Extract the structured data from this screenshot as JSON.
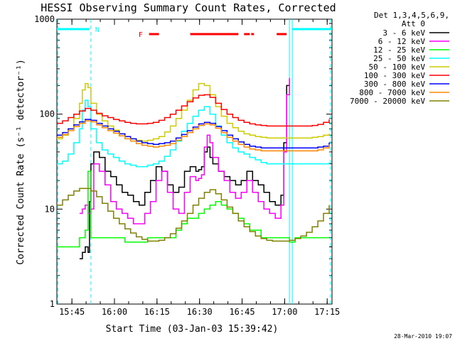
{
  "chart_data": {
    "type": "line",
    "title": "HESSI Observing Summary Count Rates, Corrected",
    "xlabel": "Start Time (03-Jan-03 15:39:42)",
    "ylabel": "Corrected Count Rate (s⁻¹ detector⁻¹)",
    "ylog": true,
    "ylim": [
      1,
      1000
    ],
    "xlim_min": [
      0,
      97
    ],
    "x_ticks": [
      {
        "min": 5.3,
        "label": "15:45"
      },
      {
        "min": 20.3,
        "label": "16:00"
      },
      {
        "min": 35.3,
        "label": "16:15"
      },
      {
        "min": 50.3,
        "label": "16:30"
      },
      {
        "min": 65.3,
        "label": "16:45"
      },
      {
        "min": 80.3,
        "label": "17:00"
      },
      {
        "min": 95.3,
        "label": "17:15"
      }
    ],
    "y_ticks": [
      {
        "v": 1,
        "label": "1"
      },
      {
        "v": 10,
        "label": "10"
      },
      {
        "v": 100,
        "label": "100"
      },
      {
        "v": 1000,
        "label": "1000"
      }
    ],
    "legend_header": [
      "Det 1,3,4,5,6,9,",
      "Att 0"
    ],
    "series": [
      {
        "name": "3 - 6 keV",
        "color": "#000000",
        "x": [
          8,
          9,
          10,
          11,
          11.5,
          12,
          13,
          15,
          17,
          19,
          21,
          23,
          25,
          27,
          29,
          31,
          33,
          35,
          37,
          39,
          41,
          43,
          45,
          47,
          49,
          50,
          51,
          52,
          53,
          54,
          55,
          57,
          59,
          61,
          63,
          65,
          67,
          69,
          71,
          73,
          75,
          77,
          79,
          80,
          81,
          82
        ],
        "y": [
          3,
          3.5,
          4,
          3.5,
          12,
          30,
          40,
          35,
          25,
          22,
          18,
          15,
          14,
          12,
          11,
          15,
          20,
          28,
          25,
          18,
          15,
          17,
          25,
          28,
          25,
          26,
          28,
          40,
          45,
          35,
          30,
          25,
          22,
          20,
          18,
          20,
          25,
          20,
          18,
          15,
          12,
          11,
          14,
          50,
          200,
          230
        ]
      },
      {
        "name": "6 - 12 keV",
        "color": "#ff00ff",
        "x": [
          8,
          9,
          10,
          11,
          12,
          13,
          15,
          17,
          19,
          21,
          23,
          25,
          27,
          29,
          31,
          33,
          35,
          37,
          39,
          41,
          43,
          45,
          47,
          49,
          50,
          51,
          52,
          53,
          54,
          55,
          57,
          59,
          61,
          63,
          65,
          67,
          69,
          71,
          73,
          75,
          77,
          79,
          80,
          81,
          82
        ],
        "y": [
          9,
          10,
          11,
          9,
          10,
          30,
          25,
          18,
          12,
          10,
          9,
          8,
          7,
          7,
          9,
          12,
          20,
          25,
          15,
          10,
          9,
          15,
          22,
          20,
          21,
          23,
          45,
          60,
          50,
          35,
          25,
          20,
          15,
          13,
          15,
          20,
          15,
          12,
          10,
          9,
          8,
          11,
          40,
          160,
          240
        ]
      },
      {
        "name": "12 - 25 keV",
        "color": "#00ff00",
        "x": [
          0,
          2,
          4,
          6,
          8,
          10,
          11,
          12,
          14,
          16,
          18,
          20,
          22,
          24,
          26,
          28,
          30,
          32,
          34,
          36,
          38,
          40,
          42,
          44,
          46,
          48,
          50,
          52,
          54,
          56,
          58,
          60,
          62,
          64,
          66,
          68,
          70,
          72,
          74,
          76,
          78,
          80,
          82,
          84,
          86,
          88,
          90,
          92,
          94,
          96
        ],
        "y": [
          4,
          4,
          4,
          4,
          5,
          6,
          25,
          5,
          5,
          5,
          5,
          5,
          5,
          4.5,
          4.5,
          4.5,
          4.5,
          5,
          5,
          5,
          5,
          5,
          6,
          7,
          8,
          8,
          9,
          10,
          11,
          12,
          11,
          10,
          9,
          8,
          7,
          6,
          6,
          5,
          5,
          5,
          5,
          5,
          4.5,
          5,
          5,
          5,
          5,
          5,
          5,
          5
        ]
      },
      {
        "name": "25 - 50 keV",
        "color": "#00ffff",
        "x": [
          0,
          2,
          4,
          6,
          8,
          9,
          10,
          11,
          12,
          14,
          16,
          18,
          20,
          22,
          24,
          26,
          28,
          30,
          32,
          34,
          36,
          38,
          40,
          42,
          44,
          46,
          48,
          50,
          52,
          54,
          56,
          58,
          60,
          62,
          64,
          66,
          68,
          70,
          72,
          74,
          76,
          78,
          80,
          82,
          84,
          86,
          88,
          90,
          92,
          94,
          96
        ],
        "y": [
          30,
          32,
          38,
          50,
          70,
          110,
          140,
          120,
          70,
          50,
          42,
          38,
          35,
          32,
          30,
          29,
          28,
          28,
          29,
          30,
          32,
          36,
          42,
          52,
          66,
          80,
          95,
          110,
          120,
          100,
          75,
          60,
          50,
          44,
          40,
          38,
          35,
          33,
          31,
          30,
          30,
          30,
          30,
          30,
          30,
          30,
          30,
          30,
          30,
          30,
          31
        ]
      },
      {
        "name": "50 - 100 keV",
        "color": "#cccc00",
        "x": [
          0,
          2,
          4,
          6,
          8,
          9,
          10,
          11,
          12,
          14,
          16,
          18,
          20,
          22,
          24,
          26,
          28,
          30,
          32,
          34,
          36,
          38,
          40,
          42,
          44,
          46,
          48,
          50,
          52,
          54,
          56,
          58,
          60,
          62,
          64,
          66,
          68,
          70,
          72,
          74,
          76,
          78,
          80,
          82,
          84,
          86,
          88,
          90,
          92,
          94,
          96
        ],
        "y": [
          55,
          60,
          70,
          90,
          130,
          180,
          210,
          190,
          130,
          100,
          85,
          75,
          68,
          62,
          58,
          55,
          53,
          52,
          53,
          55,
          58,
          65,
          75,
          90,
          110,
          140,
          180,
          210,
          200,
          160,
          120,
          95,
          80,
          72,
          66,
          62,
          60,
          58,
          57,
          56,
          56,
          56,
          56,
          56,
          56,
          56,
          56,
          57,
          58,
          60,
          62
        ]
      },
      {
        "name": "100 - 300 keV",
        "color": "#ff0000",
        "x": [
          0,
          2,
          4,
          6,
          8,
          10,
          12,
          14,
          16,
          18,
          20,
          22,
          24,
          26,
          28,
          30,
          32,
          34,
          36,
          38,
          40,
          42,
          44,
          46,
          48,
          50,
          52,
          54,
          56,
          58,
          60,
          62,
          64,
          66,
          68,
          70,
          72,
          74,
          76,
          78,
          80,
          82,
          84,
          86,
          88,
          90,
          92,
          94,
          96
        ],
        "y": [
          80,
          85,
          92,
          100,
          108,
          115,
          110,
          102,
          96,
          92,
          88,
          85,
          82,
          80,
          79,
          79,
          80,
          82,
          86,
          92,
          100,
          110,
          122,
          135,
          148,
          158,
          160,
          150,
          130,
          112,
          100,
          92,
          86,
          82,
          79,
          77,
          76,
          75,
          75,
          75,
          75,
          75,
          75,
          75,
          75,
          76,
          78,
          82,
          88
        ]
      },
      {
        "name": "300 - 800 keV",
        "color": "#0000ff",
        "x": [
          0,
          2,
          4,
          6,
          8,
          10,
          12,
          14,
          16,
          18,
          20,
          22,
          24,
          26,
          28,
          30,
          32,
          34,
          36,
          38,
          40,
          42,
          44,
          46,
          48,
          50,
          52,
          54,
          56,
          58,
          60,
          62,
          64,
          66,
          68,
          70,
          72,
          74,
          76,
          78,
          80,
          82,
          84,
          86,
          88,
          90,
          92,
          94,
          96
        ],
        "y": [
          60,
          64,
          70,
          77,
          83,
          88,
          86,
          80,
          75,
          70,
          66,
          62,
          58,
          55,
          52,
          50,
          49,
          48,
          49,
          50,
          52,
          56,
          61,
          67,
          73,
          79,
          82,
          80,
          74,
          67,
          60,
          55,
          51,
          48,
          46,
          45,
          44,
          44,
          44,
          44,
          44,
          44,
          44,
          44,
          44,
          44,
          45,
          46,
          50
        ]
      },
      {
        "name": "800 - 7000 keV",
        "color": "#ff8800",
        "x": [
          0,
          2,
          4,
          6,
          8,
          10,
          12,
          14,
          16,
          18,
          20,
          22,
          24,
          26,
          28,
          30,
          32,
          34,
          36,
          38,
          40,
          42,
          44,
          46,
          48,
          50,
          52,
          54,
          56,
          58,
          60,
          62,
          64,
          66,
          68,
          70,
          72,
          74,
          76,
          78,
          80,
          82,
          84,
          86,
          88,
          90,
          92,
          94,
          96
        ],
        "y": [
          57,
          61,
          67,
          74,
          80,
          85,
          83,
          77,
          72,
          67,
          63,
          59,
          55,
          52,
          49,
          47,
          46,
          45,
          46,
          47,
          49,
          53,
          58,
          64,
          70,
          76,
          79,
          77,
          71,
          64,
          57,
          52,
          48,
          45,
          43,
          42,
          41,
          41,
          41,
          41,
          41,
          41,
          41,
          41,
          41,
          41,
          42,
          44,
          48
        ]
      },
      {
        "name": "7000 - 20000 keV",
        "color": "#808000",
        "x": [
          0,
          2,
          4,
          6,
          8,
          10,
          12,
          14,
          16,
          18,
          20,
          22,
          24,
          26,
          28,
          30,
          32,
          34,
          36,
          38,
          40,
          42,
          44,
          46,
          48,
          50,
          52,
          54,
          56,
          58,
          60,
          62,
          64,
          66,
          68,
          70,
          72,
          74,
          76,
          78,
          80,
          82,
          84,
          86,
          88,
          90,
          92,
          94,
          96
        ],
        "y": [
          11,
          12.5,
          14,
          15.5,
          16.5,
          16.5,
          15.5,
          13.5,
          11.5,
          9.5,
          8,
          7,
          6.2,
          5.6,
          5.1,
          4.8,
          4.6,
          4.6,
          4.7,
          5,
          5.5,
          6.3,
          7.5,
          9,
          11,
          13,
          15,
          16,
          14.5,
          12.5,
          10.5,
          9,
          7.5,
          6.5,
          5.8,
          5.2,
          4.9,
          4.7,
          4.6,
          4.6,
          4.6,
          4.7,
          4.9,
          5.2,
          5.7,
          6.5,
          7.5,
          9,
          11
        ]
      }
    ],
    "annotations": {
      "night_label": "N",
      "flare_label": "F"
    },
    "timestamp": "28-Mar-2010 19:07"
  }
}
